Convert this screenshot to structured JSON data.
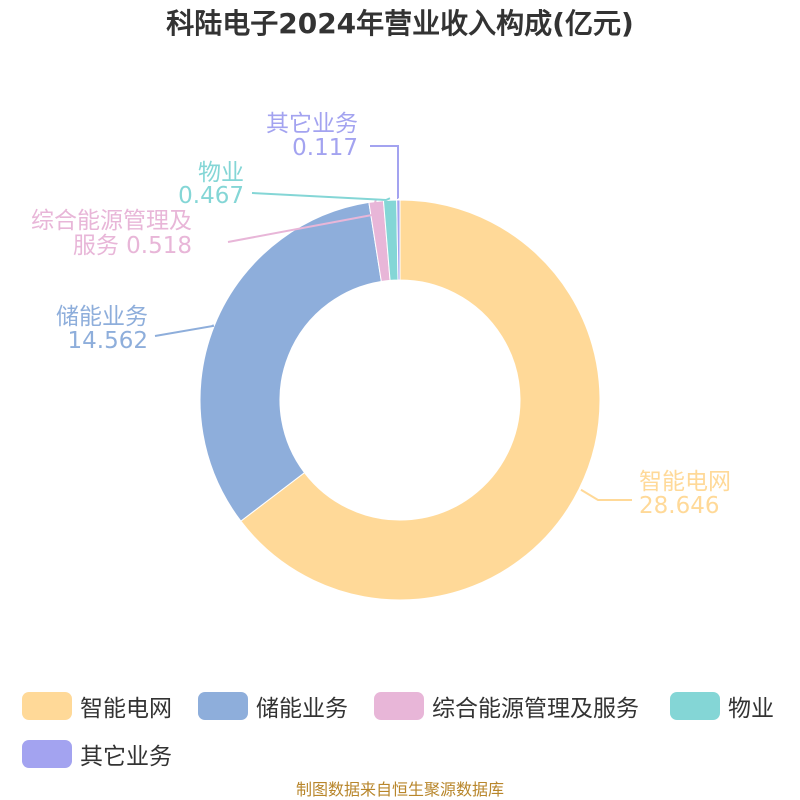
{
  "chart_data": {
    "type": "pie",
    "title": "科陆电子2024年营业收入构成(亿元)",
    "unit": "亿元",
    "donut": true,
    "slices": [
      {
        "label": "智能电网",
        "label_lines": [
          "智能电网"
        ],
        "value": 28.646,
        "value_text": "28.646",
        "value_inline": false,
        "color": "#FFD998"
      },
      {
        "label": "储能业务",
        "label_lines": [
          "储能业务"
        ],
        "value": 14.562,
        "value_text": "14.562",
        "value_inline": false,
        "color": "#8EAEDB"
      },
      {
        "label": "综合能源管理及服务",
        "label_lines": [
          "综合能源管理及",
          "服务"
        ],
        "value": 0.518,
        "value_text": "0.518",
        "value_inline": true,
        "color": "#E8B6D8"
      },
      {
        "label": "物业",
        "label_lines": [
          "物业"
        ],
        "value": 0.467,
        "value_text": "0.467",
        "value_inline": false,
        "color": "#84D6D6"
      },
      {
        "label": "其它业务",
        "label_lines": [
          "其它业务"
        ],
        "value": 0.117,
        "value_text": "0.117",
        "value_inline": false,
        "color": "#A3A3F0"
      }
    ],
    "legend_position": "bottom"
  },
  "source": "制图数据来自恒生聚源数据库"
}
